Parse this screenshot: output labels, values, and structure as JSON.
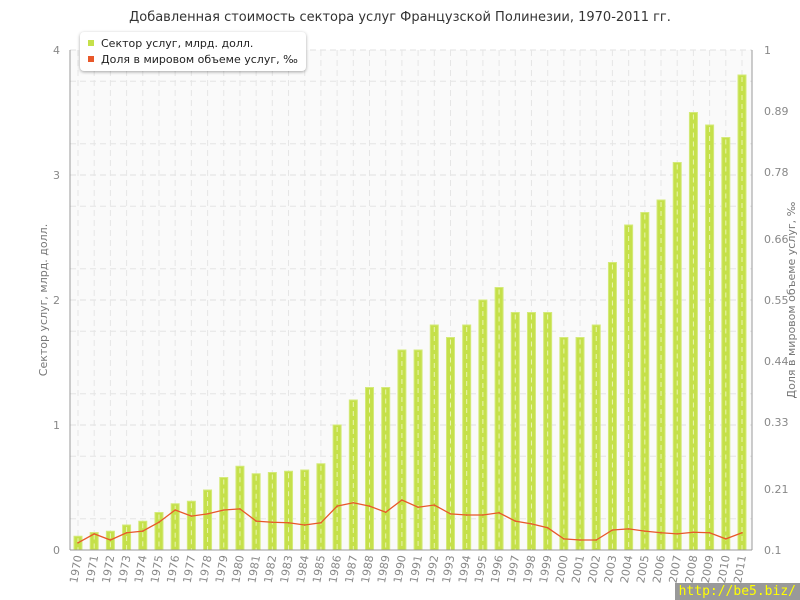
{
  "chart_data": {
    "type": "bar+line",
    "title": "Добавленная стоимость сектора услуг Французской Полинезии, 1970-2011 гг.",
    "ylabel": "Сектор услуг, млрд. долл.",
    "ylabel_right": "Доля в мировом объеме услуг, ‰",
    "ylim": [
      0,
      4
    ],
    "yticks": [
      0,
      1,
      2,
      3,
      4
    ],
    "ylim_right": [
      0.1,
      1
    ],
    "yticks_right": [
      "0.1",
      "0.21",
      "0.33",
      "0.44",
      "0.55",
      "0.66",
      "0.78",
      "0.89",
      "1"
    ],
    "grid": true,
    "legend": "top-left",
    "categories": [
      "1970",
      "1971",
      "1972",
      "1973",
      "1974",
      "1975",
      "1976",
      "1977",
      "1978",
      "1979",
      "1980",
      "1981",
      "1982",
      "1983",
      "1984",
      "1985",
      "1986",
      "1987",
      "1988",
      "1989",
      "1990",
      "1991",
      "1992",
      "1993",
      "1994",
      "1995",
      "1996",
      "1997",
      "1998",
      "1999",
      "2000",
      "2001",
      "2002",
      "2003",
      "2004",
      "2005",
      "2006",
      "2007",
      "2008",
      "2009",
      "2010",
      "2011"
    ],
    "series": [
      {
        "name": "Сектор услуг, млрд. долл.",
        "type": "bar",
        "axis": "left",
        "color": "#c5e04a",
        "values": [
          0.11,
          0.14,
          0.15,
          0.2,
          0.23,
          0.3,
          0.37,
          0.39,
          0.48,
          0.58,
          0.67,
          0.61,
          0.62,
          0.63,
          0.64,
          0.69,
          1.0,
          1.2,
          1.3,
          1.3,
          1.6,
          1.6,
          1.8,
          1.7,
          1.8,
          2.0,
          2.1,
          1.9,
          1.9,
          1.9,
          1.7,
          1.7,
          1.8,
          2.3,
          2.6,
          2.7,
          2.8,
          3.1,
          3.5,
          3.4,
          3.3,
          3.8
        ]
      },
      {
        "name": "Доля в мировом объеме услуг, ‰",
        "type": "line",
        "axis": "right",
        "color": "#e8582a",
        "values": [
          0.113,
          0.129,
          0.118,
          0.131,
          0.134,
          0.15,
          0.172,
          0.161,
          0.165,
          0.172,
          0.174,
          0.152,
          0.15,
          0.149,
          0.145,
          0.149,
          0.179,
          0.185,
          0.179,
          0.168,
          0.19,
          0.177,
          0.181,
          0.165,
          0.163,
          0.163,
          0.167,
          0.152,
          0.147,
          0.14,
          0.12,
          0.118,
          0.118,
          0.136,
          0.138,
          0.134,
          0.131,
          0.129,
          0.132,
          0.131,
          0.12,
          0.131
        ]
      }
    ]
  },
  "watermark": "http://be5.biz/"
}
